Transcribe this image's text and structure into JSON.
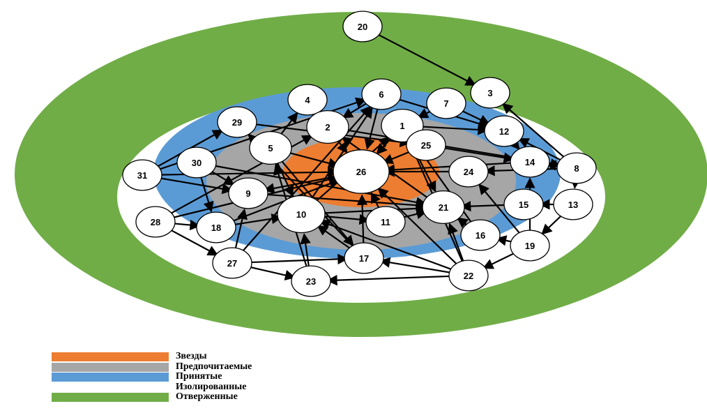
{
  "zones": [
    {
      "name": "Отверженные",
      "color": "#70ad47"
    },
    {
      "name": "Изолированные",
      "color": "#ffffff"
    },
    {
      "name": "Принятые",
      "color": "#5b9bd5"
    },
    {
      "name": "Предпочитаемые",
      "color": "#a6a6a6"
    },
    {
      "name": "Звезды",
      "color": "#ed7d31"
    }
  ],
  "legend": [
    {
      "label": "Звезды",
      "color": "#ed7d31"
    },
    {
      "label": "Предпочитаемые",
      "color": "#a6a6a6"
    },
    {
      "label": "Принятые",
      "color": "#5b9bd5"
    },
    {
      "label": "Изолированные",
      "color": "#ffffff"
    },
    {
      "label": "Отверженные",
      "color": "#70ad47"
    }
  ],
  "nodes": [
    {
      "id": "n20",
      "label": "20"
    },
    {
      "id": "n3",
      "label": "3"
    },
    {
      "id": "n4",
      "label": "4"
    },
    {
      "id": "n6",
      "label": "6"
    },
    {
      "id": "n7",
      "label": "7"
    },
    {
      "id": "n1",
      "label": "1"
    },
    {
      "id": "n2",
      "label": "2"
    },
    {
      "id": "n29",
      "label": "29"
    },
    {
      "id": "n12",
      "label": "12"
    },
    {
      "id": "n5",
      "label": "5"
    },
    {
      "id": "n25",
      "label": "25"
    },
    {
      "id": "n14",
      "label": "14"
    },
    {
      "id": "n8",
      "label": "8"
    },
    {
      "id": "n30",
      "label": "30"
    },
    {
      "id": "n26",
      "label": "26"
    },
    {
      "id": "n24",
      "label": "24"
    },
    {
      "id": "n31",
      "label": "31"
    },
    {
      "id": "n9",
      "label": "9"
    },
    {
      "id": "n15",
      "label": "15"
    },
    {
      "id": "n13",
      "label": "13"
    },
    {
      "id": "n10",
      "label": "10"
    },
    {
      "id": "n21",
      "label": "21"
    },
    {
      "id": "n28",
      "label": "28"
    },
    {
      "id": "n18",
      "label": "18"
    },
    {
      "id": "n11",
      "label": "11"
    },
    {
      "id": "n16",
      "label": "16"
    },
    {
      "id": "n19",
      "label": "19"
    },
    {
      "id": "n17",
      "label": "17"
    },
    {
      "id": "n27",
      "label": "27"
    },
    {
      "id": "n22",
      "label": "22"
    },
    {
      "id": "n23",
      "label": "23"
    }
  ],
  "edges": [
    [
      "n20",
      "n3"
    ],
    [
      "n8",
      "n3"
    ],
    [
      "n8",
      "n14"
    ],
    [
      "n8",
      "n24"
    ],
    [
      "n8",
      "n12"
    ],
    [
      "n8",
      "n13"
    ],
    [
      "n13",
      "n15"
    ],
    [
      "n13",
      "n19"
    ],
    [
      "n19",
      "n16"
    ],
    [
      "n19",
      "n22"
    ],
    [
      "n19",
      "n24"
    ],
    [
      "n19",
      "n14"
    ],
    [
      "n22",
      "n23"
    ],
    [
      "n22",
      "n1"
    ],
    [
      "n22",
      "n21"
    ],
    [
      "n22",
      "n26"
    ],
    [
      "n22",
      "n10"
    ],
    [
      "n22",
      "n17"
    ],
    [
      "n17",
      "n10"
    ],
    [
      "n17",
      "n26"
    ],
    [
      "n17",
      "n29"
    ],
    [
      "n23",
      "n10"
    ],
    [
      "n23",
      "n5"
    ],
    [
      "n27",
      "n23"
    ],
    [
      "n27",
      "n9"
    ],
    [
      "n27",
      "n6"
    ],
    [
      "n27",
      "n17"
    ],
    [
      "n28",
      "n27"
    ],
    [
      "n28",
      "n2"
    ],
    [
      "n28",
      "n18"
    ],
    [
      "n28",
      "n26"
    ],
    [
      "n31",
      "n29"
    ],
    [
      "n31",
      "n6"
    ],
    [
      "n31",
      "n9"
    ],
    [
      "n31",
      "n26"
    ],
    [
      "n30",
      "n18"
    ],
    [
      "n30",
      "n21"
    ],
    [
      "n30",
      "n9"
    ],
    [
      "n18",
      "n10"
    ],
    [
      "n18",
      "n26"
    ],
    [
      "n10",
      "n21"
    ],
    [
      "n10",
      "n11"
    ],
    [
      "n10",
      "n1"
    ],
    [
      "n10",
      "n6"
    ],
    [
      "n11",
      "n21"
    ],
    [
      "n11",
      "n26"
    ],
    [
      "n16",
      "n1"
    ],
    [
      "n16",
      "n2"
    ],
    [
      "n16",
      "n21"
    ],
    [
      "n5",
      "n4"
    ],
    [
      "n5",
      "n10"
    ],
    [
      "n5",
      "n17"
    ],
    [
      "n5",
      "n26"
    ],
    [
      "n6",
      "n12"
    ],
    [
      "n6",
      "n26"
    ],
    [
      "n6",
      "n2"
    ],
    [
      "n7",
      "n12"
    ],
    [
      "n7",
      "n1"
    ],
    [
      "n12",
      "n14"
    ],
    [
      "n1",
      "n12"
    ],
    [
      "n1",
      "n26"
    ],
    [
      "n1",
      "n21"
    ],
    [
      "n2",
      "n26"
    ],
    [
      "n29",
      "n25"
    ],
    [
      "n25",
      "n26"
    ],
    [
      "n25",
      "n14"
    ],
    [
      "n24",
      "n26"
    ],
    [
      "n26",
      "n9"
    ],
    [
      "n9",
      "n21"
    ],
    [
      "n15",
      "n21"
    ],
    [
      "n14",
      "n26"
    ],
    [
      "n2",
      "n8"
    ]
  ]
}
